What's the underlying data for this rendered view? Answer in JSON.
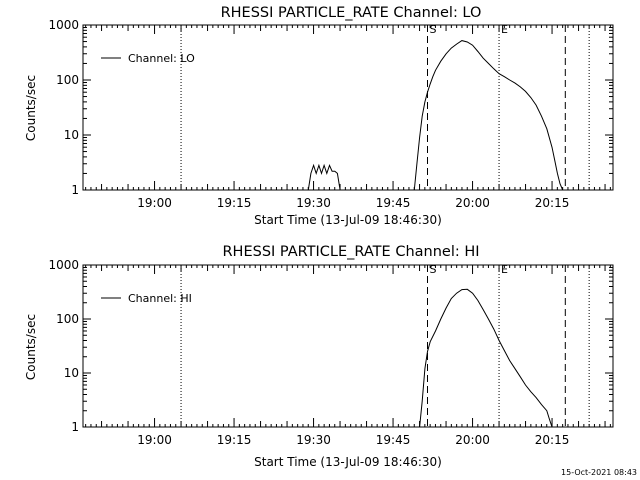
{
  "timestamp": "15-Oct-2021 08:43",
  "chart_data": [
    {
      "type": "line",
      "title": "RHESSI PARTICLE_RATE Channel: LO",
      "xlabel": "Start Time (13-Jul-09 18:46:30)",
      "ylabel": "Counts/sec",
      "legend": "Channel: LO",
      "legend_position": "top-left",
      "log_y": true,
      "xlim": [
        "18:46:30",
        "20:26:30"
      ],
      "ylim": [
        1,
        1000
      ],
      "x_ticks": [
        "19:00",
        "19:15",
        "19:30",
        "19:45",
        "20:00",
        "20:15"
      ],
      "y_ticks": [
        "1",
        "10",
        "100",
        "1000"
      ],
      "markers": [
        {
          "time": "19:51:30",
          "style": "dashed",
          "label": "S"
        },
        {
          "time": "20:05:00",
          "style": "dotted",
          "label": "E"
        },
        {
          "time": "19:05:00",
          "style": "dotted",
          "label": ""
        },
        {
          "time": "20:17:30",
          "style": "dashed",
          "label": ""
        },
        {
          "time": "20:22:00",
          "style": "dotted",
          "label": ""
        }
      ],
      "x": [
        "19:29:00",
        "19:29:30",
        "19:30:00",
        "19:30:30",
        "19:31:00",
        "19:31:30",
        "19:32:00",
        "19:32:30",
        "19:33:00",
        "19:33:30",
        "19:34:00",
        "19:34:30",
        "19:35:00",
        "19:49:00",
        "19:49:30",
        "19:50:00",
        "19:50:30",
        "19:51:00",
        "19:51:30",
        "19:52:00",
        "19:52:30",
        "19:53:00",
        "19:54:00",
        "19:55:00",
        "19:56:00",
        "19:57:00",
        "19:58:00",
        "19:59:00",
        "20:00:00",
        "20:01:00",
        "20:02:00",
        "20:03:00",
        "20:04:00",
        "20:05:00",
        "20:06:00",
        "20:07:00",
        "20:08:00",
        "20:09:00",
        "20:10:00",
        "20:11:00",
        "20:12:00",
        "20:13:00",
        "20:14:00",
        "20:15:00",
        "20:15:30",
        "20:16:00",
        "20:16:30",
        "20:17:00"
      ],
      "values": [
        1.0,
        2.0,
        2.8,
        2.0,
        2.8,
        2.0,
        2.8,
        2.0,
        2.8,
        2.2,
        2.2,
        2.0,
        1.0,
        1.0,
        3.0,
        9.0,
        22.0,
        40.0,
        60.0,
        85.0,
        115.0,
        150.0,
        220.0,
        300.0,
        380.0,
        450.0,
        520.0,
        490.0,
        430.0,
        330.0,
        250.0,
        200.0,
        160.0,
        130.0,
        115.0,
        100.0,
        88.0,
        75.0,
        62.0,
        48.0,
        35.0,
        22.0,
        13.0,
        6.0,
        3.5,
        2.0,
        1.3,
        1.0
      ]
    },
    {
      "type": "line",
      "title": "RHESSI PARTICLE_RATE Channel: HI",
      "xlabel": "Start Time (13-Jul-09 18:46:30)",
      "ylabel": "Counts/sec",
      "legend": "Channel: HI",
      "legend_position": "top-left",
      "log_y": true,
      "xlim": [
        "18:46:30",
        "20:26:30"
      ],
      "ylim": [
        1,
        1000
      ],
      "x_ticks": [
        "19:00",
        "19:15",
        "19:30",
        "19:45",
        "20:00",
        "20:15"
      ],
      "y_ticks": [
        "1",
        "10",
        "100",
        "1000"
      ],
      "markers": [
        {
          "time": "19:51:30",
          "style": "dashed",
          "label": "S"
        },
        {
          "time": "20:05:00",
          "style": "dotted",
          "label": "E"
        },
        {
          "time": "19:05:00",
          "style": "dotted",
          "label": ""
        },
        {
          "time": "20:17:30",
          "style": "dashed",
          "label": ""
        },
        {
          "time": "20:22:00",
          "style": "dotted",
          "label": ""
        }
      ],
      "x": [
        "19:50:00",
        "19:50:30",
        "19:51:00",
        "19:51:30",
        "19:52:00",
        "19:53:00",
        "19:54:00",
        "19:55:00",
        "19:56:00",
        "19:57:00",
        "19:58:00",
        "19:59:00",
        "20:00:00",
        "20:01:00",
        "20:02:00",
        "20:03:00",
        "20:04:00",
        "20:05:00",
        "20:06:00",
        "20:07:00",
        "20:08:00",
        "20:09:00",
        "20:10:00",
        "20:11:00",
        "20:12:00",
        "20:13:00",
        "20:14:00",
        "20:14:30",
        "20:15:00"
      ],
      "values": [
        1.0,
        3.0,
        12.0,
        25.0,
        38.0,
        60.0,
        100.0,
        160.0,
        240.0,
        300.0,
        350.0,
        355.0,
        300.0,
        220.0,
        150.0,
        100.0,
        65.0,
        40.0,
        26.0,
        17.0,
        12.0,
        8.5,
        6.0,
        4.5,
        3.5,
        2.6,
        2.0,
        1.4,
        1.0
      ]
    }
  ]
}
